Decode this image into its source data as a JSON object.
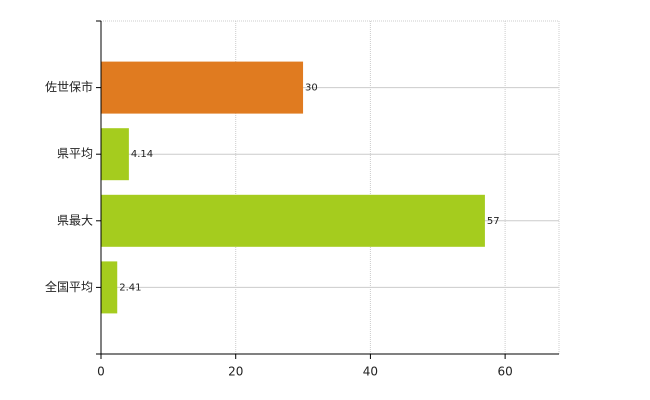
{
  "chart_data": {
    "type": "hbar",
    "categories": [
      "佐世保市",
      "県平均",
      "県最大",
      "全国平均"
    ],
    "values": [
      30,
      4.14,
      57,
      2.41
    ],
    "colors": [
      "#e07b20",
      "#a5cc1e",
      "#a5cc1e",
      "#a5cc1e"
    ],
    "xlim": [
      0,
      68
    ],
    "xticks": [
      0,
      20,
      40,
      60
    ],
    "grid": true
  }
}
